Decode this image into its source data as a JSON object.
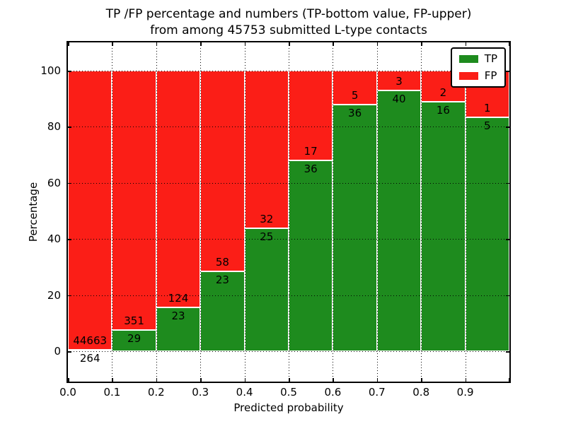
{
  "figure": {
    "title_line1": "TP /FP percentage and numbers (TP-bottom value, FP-upper)",
    "title_line2": "from among 45753 submitted L-type contacts"
  },
  "axes": {
    "xlabel": "Predicted probability",
    "ylabel": "Percentage"
  },
  "legend": {
    "items": [
      {
        "label": "TP"
      },
      {
        "label": "FP"
      }
    ]
  },
  "chart_data": {
    "type": "bar",
    "stacked": true,
    "title": "TP /FP percentage and numbers (TP-bottom value, FP-upper)\nfrom among 45753 submitted L-type contacts",
    "xlabel": "Predicted probability",
    "ylabel": "Percentage",
    "total_contacts": 45753,
    "bin_width": 0.1,
    "xlim": [
      0.0,
      1.0
    ],
    "ylim": [
      -10.8,
      110.1
    ],
    "x_tick_labels": [
      "0.0",
      "0.1",
      "0.2",
      "0.3",
      "0.4",
      "0.5",
      "0.6",
      "0.7",
      "0.8",
      "0.9"
    ],
    "y_ticks": [
      0,
      20,
      40,
      60,
      80,
      100
    ],
    "grid": true,
    "legend_position": "upper right",
    "series": [
      {
        "name": "TP",
        "color": "#1e8b1e"
      },
      {
        "name": "FP",
        "color": "#fb1e17"
      }
    ],
    "bins": [
      {
        "x_start": 0.0,
        "tp_count": 264,
        "fp_count": 44663,
        "tp_pct": 0.59,
        "fp_pct": 99.41
      },
      {
        "x_start": 0.1,
        "tp_count": 29,
        "fp_count": 351,
        "tp_pct": 7.63,
        "fp_pct": 92.37
      },
      {
        "x_start": 0.2,
        "tp_count": 23,
        "fp_count": 124,
        "tp_pct": 15.65,
        "fp_pct": 84.35
      },
      {
        "x_start": 0.3,
        "tp_count": 23,
        "fp_count": 58,
        "tp_pct": 28.4,
        "fp_pct": 71.6
      },
      {
        "x_start": 0.4,
        "tp_count": 25,
        "fp_count": 32,
        "tp_pct": 43.86,
        "fp_pct": 56.14
      },
      {
        "x_start": 0.5,
        "tp_count": 36,
        "fp_count": 17,
        "tp_pct": 67.92,
        "fp_pct": 32.08
      },
      {
        "x_start": 0.6,
        "tp_count": 36,
        "fp_count": 5,
        "tp_pct": 87.8,
        "fp_pct": 12.2
      },
      {
        "x_start": 0.7,
        "tp_count": 40,
        "fp_count": 3,
        "tp_pct": 93.02,
        "fp_pct": 6.98
      },
      {
        "x_start": 0.8,
        "tp_count": 16,
        "fp_count": 2,
        "tp_pct": 88.89,
        "fp_pct": 11.11
      },
      {
        "x_start": 0.9,
        "tp_count": 5,
        "fp_count": 1,
        "tp_pct": 83.33,
        "fp_pct": 16.67
      }
    ]
  }
}
